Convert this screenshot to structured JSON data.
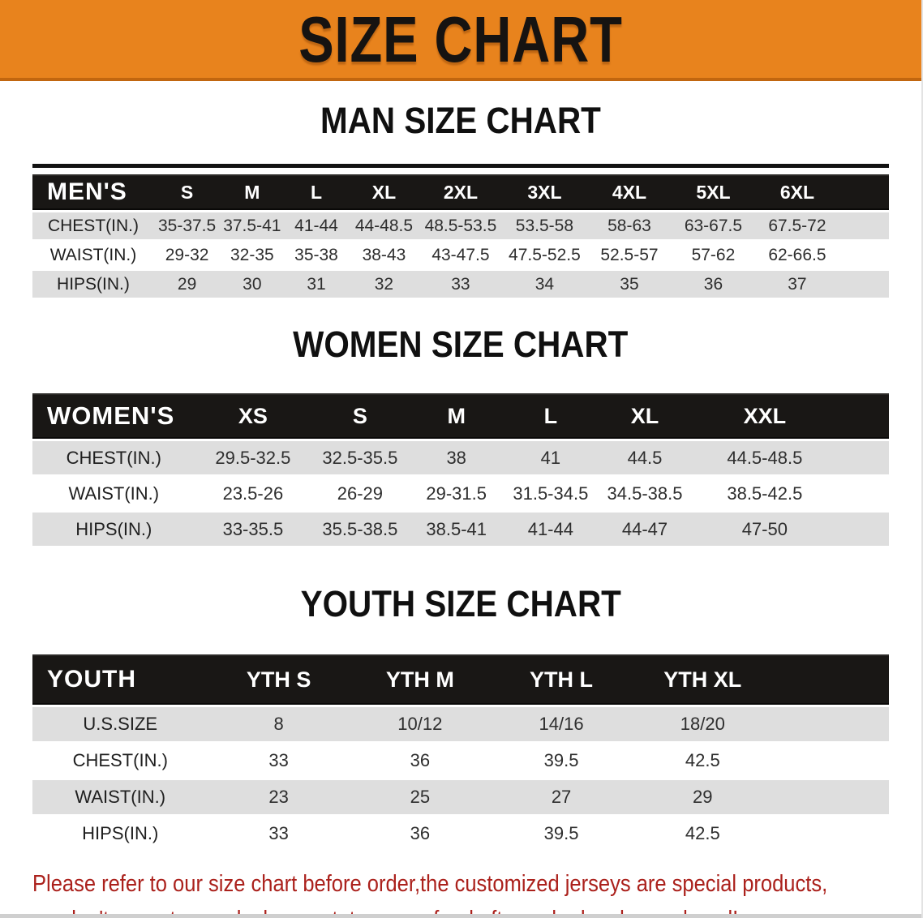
{
  "banner": {
    "title": "SIZE CHART",
    "bg_color": "#E8831D",
    "border_color": "#C1660F",
    "text_color": "#161311"
  },
  "headings": {
    "man": "MAN SIZE CHART",
    "women": "WOMEN SIZE CHART",
    "youth": "YOUTH SIZE CHART"
  },
  "tables": {
    "men": {
      "header_label": "MEN'S",
      "columns": [
        "S",
        "M",
        "L",
        "XL",
        "2XL",
        "3XL",
        "4XL",
        "5XL",
        "6XL"
      ],
      "rows": [
        {
          "label": "CHEST(IN.)",
          "values": [
            "35-37.5",
            "37.5-41",
            "41-44",
            "44-48.5",
            "48.5-53.5",
            "53.5-58",
            "58-63",
            "63-67.5",
            "67.5-72"
          ]
        },
        {
          "label": "WAIST(IN.)",
          "values": [
            "29-32",
            "32-35",
            "35-38",
            "38-43",
            "43-47.5",
            "47.5-52.5",
            "52.5-57",
            "57-62",
            "62-66.5"
          ]
        },
        {
          "label": "HIPS(IN.)",
          "values": [
            "29",
            "30",
            "31",
            "32",
            "33",
            "34",
            "35",
            "36",
            "37"
          ]
        }
      ]
    },
    "women": {
      "header_label": "WOMEN'S",
      "columns": [
        "XS",
        "S",
        "M",
        "L",
        "XL",
        "XXL"
      ],
      "rows": [
        {
          "label": "CHEST(IN.)",
          "values": [
            "29.5-32.5",
            "32.5-35.5",
            "38",
            "41",
            "44.5",
            "44.5-48.5"
          ]
        },
        {
          "label": "WAIST(IN.)",
          "values": [
            "23.5-26",
            "26-29",
            "29-31.5",
            "31.5-34.5",
            "34.5-38.5",
            "38.5-42.5"
          ]
        },
        {
          "label": "HIPS(IN.)",
          "values": [
            "33-35.5",
            "35.5-38.5",
            "38.5-41",
            "41-44",
            "44-47",
            "47-50"
          ]
        }
      ]
    },
    "youth": {
      "header_label": "YOUTH",
      "columns": [
        "YTH S",
        "YTH M",
        "YTH L",
        "YTH XL"
      ],
      "rows": [
        {
          "label": "U.S.SIZE",
          "values": [
            "8",
            "10/12",
            "14/16",
            "18/20"
          ]
        },
        {
          "label": "CHEST(IN.)",
          "values": [
            "33",
            "36",
            "39.5",
            "42.5"
          ]
        },
        {
          "label": "WAIST(IN.)",
          "values": [
            "23",
            "25",
            "27",
            "29"
          ]
        },
        {
          "label": "HIPS(IN.)",
          "values": [
            "33",
            "36",
            "39.5",
            "42.5"
          ]
        }
      ]
    }
  },
  "disclaimer": {
    "line1": "Please refer to our size chart before order,the customized jerseys are special products,",
    "line2": "we don't accept cancel, change, teturn or refund after order has been placed!",
    "text_color": "#AB211C"
  },
  "colors": {
    "table_header_bg": "#191715",
    "stripe_gray": "#DEDEDE",
    "stripe_white": "#FFFFFF"
  }
}
